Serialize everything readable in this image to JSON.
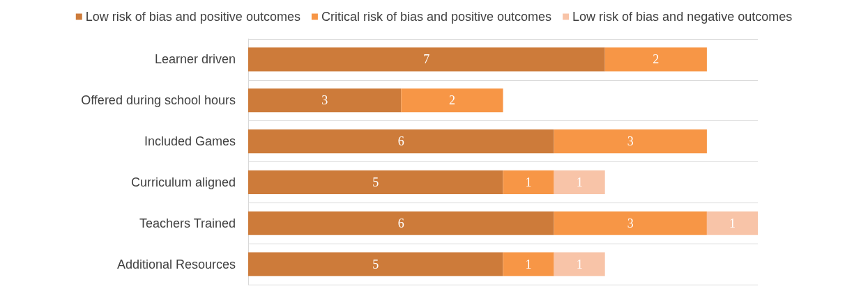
{
  "chart_data": {
    "type": "bar",
    "orientation": "horizontal",
    "stacked": true,
    "data_labels": true,
    "grid": "y",
    "legend": "top",
    "categories": [
      "Learner driven",
      "Offered during school hours",
      "Included Games",
      "Curriculum aligned",
      "Teachers Trained",
      "Additional Resources"
    ],
    "series": [
      {
        "name": "Low risk of bias and positive outcomes",
        "color": "#cd7b3a",
        "values": [
          7,
          3,
          6,
          5,
          6,
          5
        ]
      },
      {
        "name": "Critical risk of bias and positive outcomes",
        "color": "#f79646",
        "values": [
          2,
          2,
          3,
          1,
          3,
          1
        ]
      },
      {
        "name": "Low risk of bias and negative outcomes",
        "color": "#f8c4a8",
        "values": [
          null,
          null,
          null,
          1,
          1,
          1
        ]
      }
    ]
  }
}
